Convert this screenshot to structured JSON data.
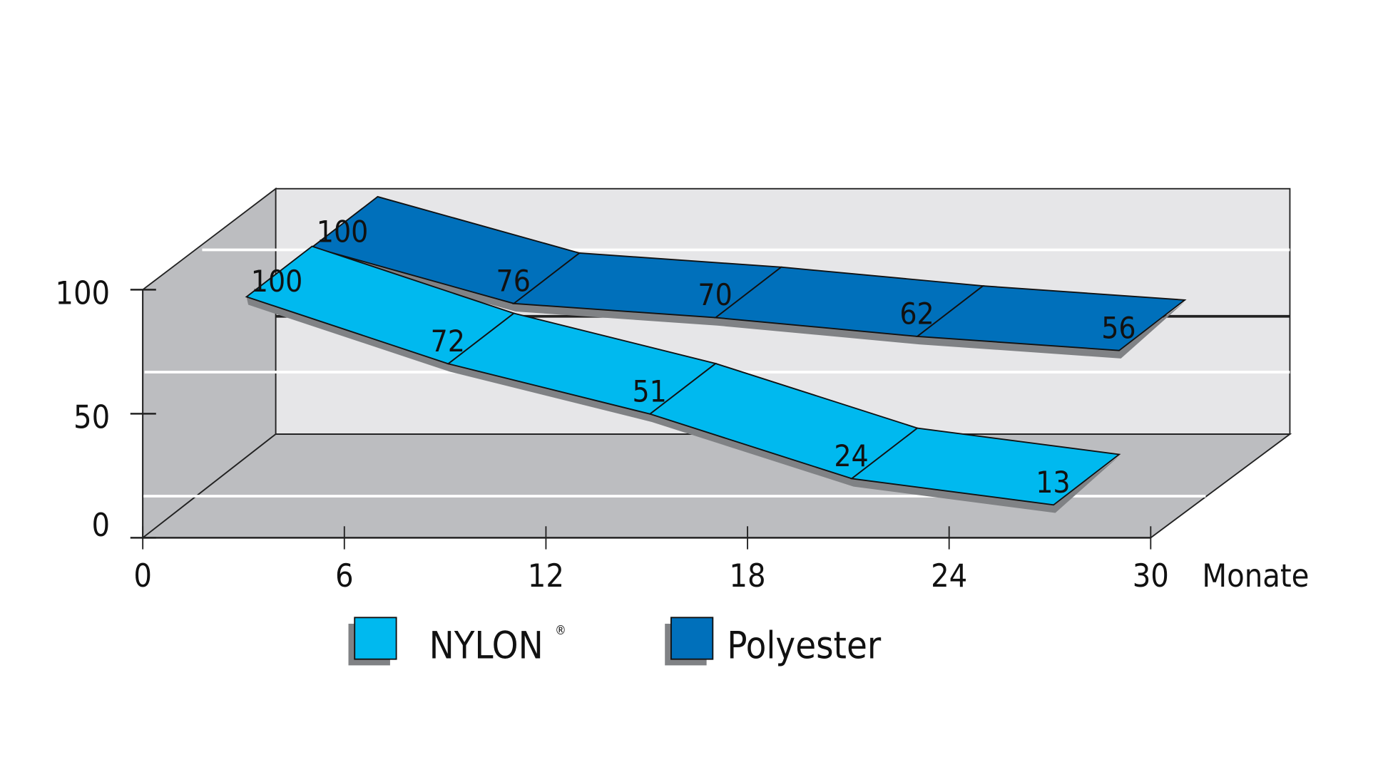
{
  "chart_data": {
    "type": "area",
    "style": "3d-ribbon",
    "xlabel": "Monate",
    "ylabel": "",
    "xlim": [
      0,
      30
    ],
    "ylim": [
      0,
      100
    ],
    "x_ticks": [
      "0",
      "6",
      "12",
      "18",
      "24",
      "30"
    ],
    "y_ticks": [
      "0",
      "50",
      "100"
    ],
    "categories": [
      0,
      6,
      12,
      18,
      24
    ],
    "grid": true,
    "legend_position": "bottom",
    "series": [
      {
        "name": "NYLON",
        "mark": "®",
        "color": "#00b9ef",
        "values": [
          100,
          72,
          51,
          24,
          13
        ]
      },
      {
        "name": "Polyester",
        "color": "#0070bb",
        "values": [
          100,
          76,
          70,
          62,
          56
        ]
      }
    ],
    "colors": {
      "back_wall": "#e6e6e8",
      "floor": "#bcbdc0",
      "shadow": "#808285"
    }
  }
}
